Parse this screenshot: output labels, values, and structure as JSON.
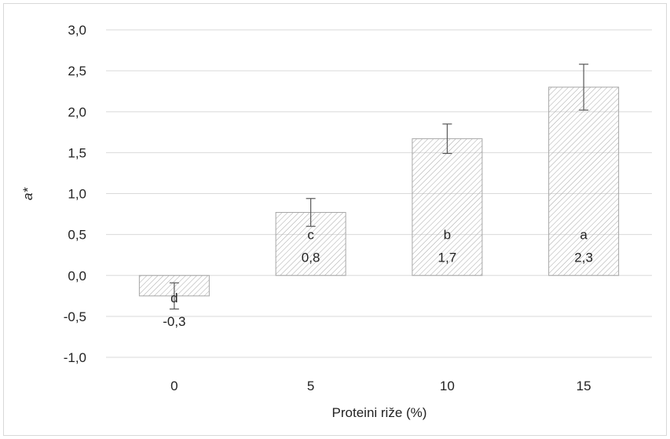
{
  "chart_data": {
    "type": "bar",
    "categories": [
      "0",
      "5",
      "10",
      "15"
    ],
    "values": [
      -0.25,
      0.77,
      1.67,
      2.3
    ],
    "errors": [
      0.16,
      0.17,
      0.18,
      0.28
    ],
    "value_labels": [
      "-0,3",
      "0,8",
      "1,7",
      "2,3"
    ],
    "letters": [
      "d",
      "c",
      "b",
      "a"
    ],
    "xlabel": "Proteini riže (%)",
    "ylabel": "a*",
    "ylim": [
      -1.0,
      3.0
    ],
    "yticks": [
      -1.0,
      -0.5,
      0.0,
      0.5,
      1.0,
      1.5,
      2.0,
      2.5,
      3.0
    ],
    "ytick_labels": [
      "-1,0",
      "-0,5",
      "0,0",
      "0,5",
      "1,0",
      "1,5",
      "2,0",
      "2,5",
      "3,0"
    ],
    "grid": true,
    "bar_pattern": "diagonal-hatch",
    "colors": {
      "hatch": "#a6a6a6",
      "bar_border": "#a6a6a6",
      "grid": "#d9d9d9",
      "error_bar": "#595959",
      "text": "#222222"
    }
  }
}
